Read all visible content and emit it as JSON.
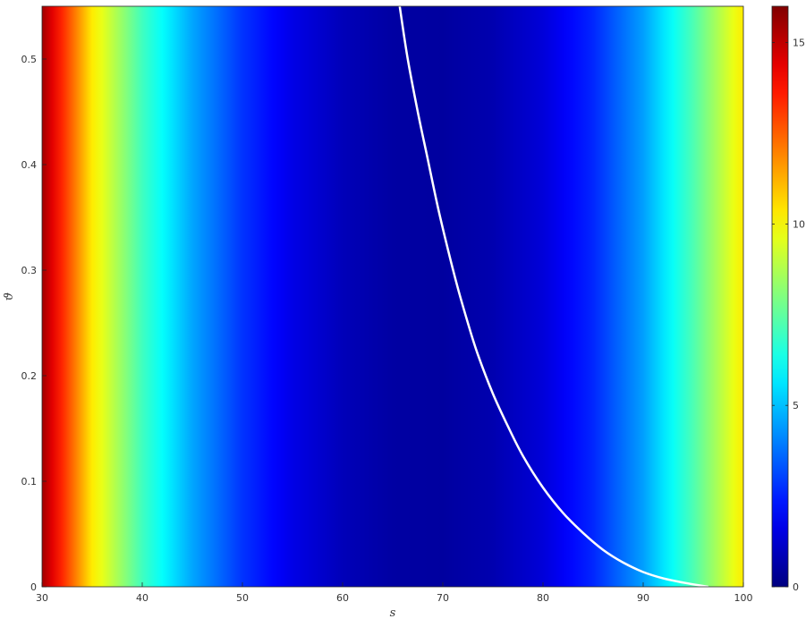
{
  "chart_data": {
    "type": "heatmap",
    "title": "",
    "xlabel": "s",
    "ylabel": "ϑ",
    "xlim": [
      30,
      100
    ],
    "ylim": [
      0,
      0.55
    ],
    "x_ticks": [
      30,
      40,
      50,
      60,
      70,
      80,
      90,
      100
    ],
    "y_ticks": [
      0,
      0.1,
      0.2,
      0.3,
      0.4,
      0.5
    ],
    "colormap": "jet",
    "colorbar": {
      "range": [
        0,
        16
      ],
      "ticks": [
        0,
        5,
        10,
        15
      ],
      "placement": "right"
    },
    "grid": false,
    "value_profile_along_s": {
      "s": [
        30,
        35,
        40,
        45,
        50,
        55,
        60,
        65,
        70,
        75,
        80,
        85,
        90,
        95,
        100
      ],
      "value": [
        15.5,
        10.3,
        7.0,
        4.6,
        2.8,
        1.6,
        0.9,
        0.55,
        0.5,
        0.75,
        1.4,
        2.6,
        4.5,
        7.2,
        10.3
      ]
    },
    "series": [
      {
        "type": "line",
        "color": "#ffffff",
        "x": [
          65.7,
          66.5,
          67.5,
          68.5,
          69.5,
          70.5,
          71.5,
          72.5,
          73.5,
          75,
          76.5,
          78,
          80,
          82,
          84,
          86,
          88,
          90,
          92,
          94,
          96.5
        ],
        "y": [
          0.55,
          0.5,
          0.45,
          0.405,
          0.36,
          0.32,
          0.283,
          0.25,
          0.22,
          0.183,
          0.152,
          0.124,
          0.094,
          0.07,
          0.051,
          0.035,
          0.023,
          0.014,
          0.008,
          0.004,
          0.0
        ]
      }
    ]
  }
}
